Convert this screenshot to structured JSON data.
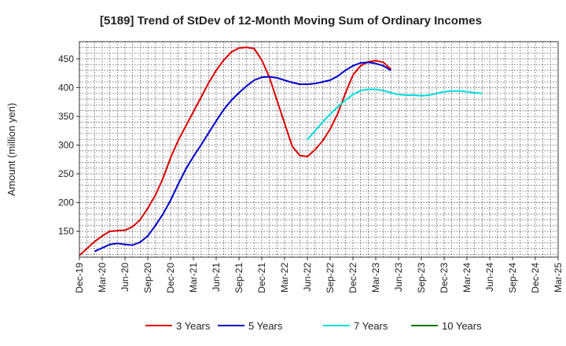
{
  "chart_data": {
    "type": "line",
    "title": "[5189]  Trend of StDev of 12-Month Moving Sum of Ordinary Incomes",
    "xlabel": "",
    "ylabel": "Amount (million yen)",
    "ylim": [
      105,
      480
    ],
    "yticks": [
      150,
      200,
      250,
      300,
      350,
      400,
      450
    ],
    "x_tick_labels": [
      "Dec-19",
      "Mar-20",
      "Jun-20",
      "Sep-20",
      "Dec-20",
      "Mar-21",
      "Jun-21",
      "Sep-21",
      "Dec-21",
      "Mar-22",
      "Jun-22",
      "Sep-22",
      "Dec-22",
      "Mar-23",
      "Jun-23",
      "Sep-23",
      "Dec-23",
      "Mar-24",
      "Jun-24",
      "Sep-24",
      "Dec-24",
      "Mar-25"
    ],
    "grid": true,
    "legend_position": "bottom",
    "series": [
      {
        "name": "3 Years",
        "color": "#dd0000",
        "start_index": 0,
        "values": [
          108,
          120,
          132,
          142,
          150,
          151,
          152,
          158,
          170,
          190,
          213,
          242,
          278,
          308,
          333,
          358,
          383,
          408,
          430,
          448,
          462,
          469,
          470,
          468,
          448,
          418,
          378,
          338,
          298,
          282,
          280,
          292,
          307,
          328,
          355,
          390,
          422,
          438,
          445,
          447,
          444,
          432
        ]
      },
      {
        "name": "5 Years",
        "color": "#0000cc",
        "start_index": 2,
        "values": [
          115,
          121,
          127,
          129,
          127,
          126,
          131,
          142,
          160,
          180,
          204,
          232,
          258,
          280,
          300,
          321,
          342,
          362,
          378,
          391,
          403,
          413,
          418,
          419,
          417,
          413,
          409,
          406,
          406,
          407,
          410,
          413,
          420,
          430,
          438,
          443,
          444,
          442,
          438,
          430
        ]
      },
      {
        "name": "7 Years",
        "color": "#00dddd",
        "start_index": 30,
        "values": [
          309,
          325,
          340,
          354,
          367,
          378,
          388,
          395,
          397,
          397,
          395,
          391,
          388,
          387,
          387,
          386,
          387,
          390,
          393,
          394,
          394,
          393,
          391,
          390
        ]
      },
      {
        "name": "10 Years",
        "color": "#007700",
        "start_index": 0,
        "values": []
      }
    ]
  }
}
